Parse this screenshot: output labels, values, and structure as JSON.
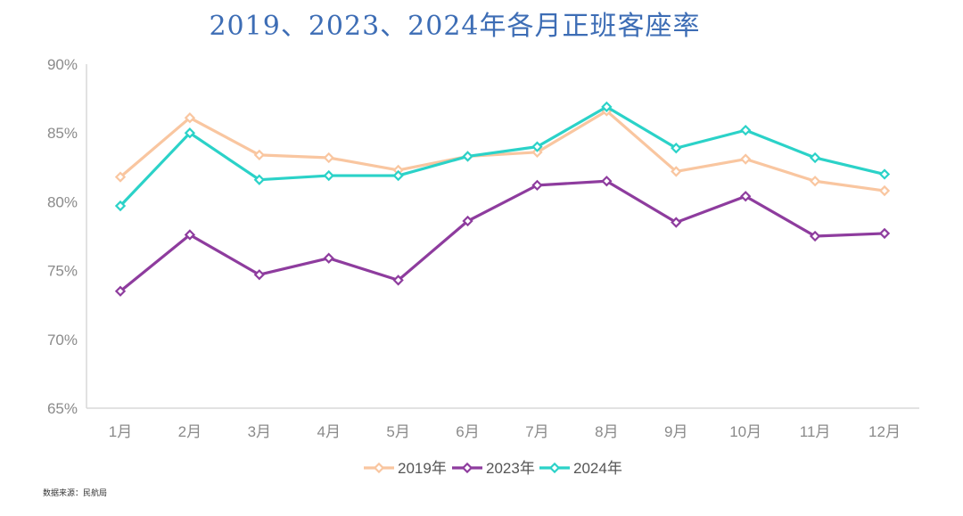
{
  "chart_data": {
    "type": "line",
    "title": "2019、2023、2024年各月正班客座率",
    "categories": [
      "1月",
      "2月",
      "3月",
      "4月",
      "5月",
      "6月",
      "7月",
      "8月",
      "9月",
      "10月",
      "11月",
      "12月"
    ],
    "ylim": [
      65,
      90
    ],
    "yticks": [
      65,
      70,
      75,
      80,
      85,
      90
    ],
    "ytick_labels": [
      "65%",
      "70%",
      "75%",
      "80%",
      "85%",
      "90%"
    ],
    "grid": false,
    "legend_position": "bottom",
    "series": [
      {
        "name": "2019年",
        "color": "#f9c6a0",
        "values": [
          81.8,
          86.1,
          83.4,
          83.2,
          82.3,
          83.3,
          83.6,
          86.6,
          82.2,
          83.1,
          81.5,
          80.8
        ]
      },
      {
        "name": "2023年",
        "color": "#8e3c9e",
        "values": [
          73.5,
          77.6,
          74.7,
          75.9,
          74.3,
          78.6,
          81.2,
          81.5,
          78.5,
          80.4,
          77.5,
          77.7
        ]
      },
      {
        "name": "2024年",
        "color": "#2bd2c8",
        "values": [
          79.7,
          85.0,
          81.6,
          81.9,
          81.9,
          83.3,
          84.0,
          86.9,
          83.9,
          85.2,
          83.2,
          82.0
        ]
      }
    ]
  },
  "source_note": "数据来源：民航局"
}
